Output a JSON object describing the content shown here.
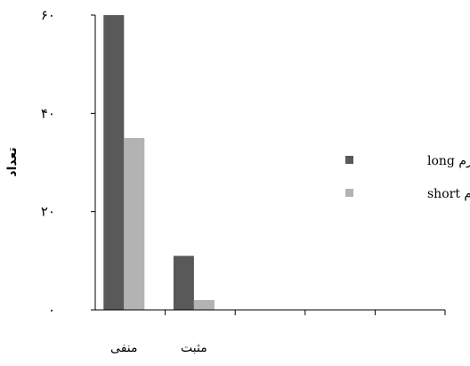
{
  "chart_data": {
    "type": "bar",
    "categories": [
      "منفی",
      "مثبت",
      "",
      "",
      ""
    ],
    "ylabel": "تعداد",
    "xlabel": "",
    "ylim": [
      0,
      60
    ],
    "yticks": [
      "۰",
      "۲۰",
      "۴۰",
      "۶۰"
    ],
    "ytick_values": [
      0,
      20,
      40,
      60
    ],
    "series": [
      {
        "name": "ایزوفرم long",
        "color": "#595959",
        "values": [
          60,
          11,
          0,
          0,
          0
        ]
      },
      {
        "name": "ایزوفرم short",
        "color": "#b3b3b3",
        "values": [
          35,
          2,
          0,
          0,
          0
        ]
      }
    ],
    "legend_position": "right",
    "grid": false
  }
}
